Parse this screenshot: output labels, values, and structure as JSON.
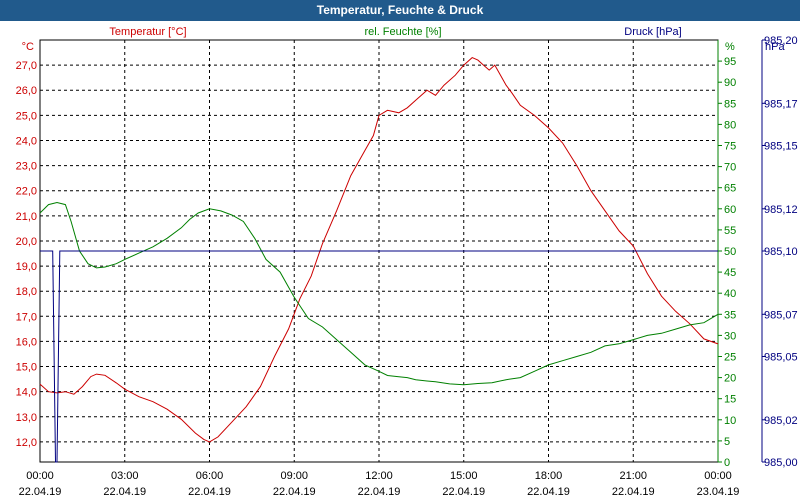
{
  "window": {
    "title": "Temperatur, Feuchte & Druck"
  },
  "chart_data": {
    "type": "line",
    "title": "Temperatur, Feuchte & Druck",
    "grid": true,
    "x_ticks": [
      {
        "time": "00:00",
        "date": "22.04.19"
      },
      {
        "time": "03:00",
        "date": "22.04.19"
      },
      {
        "time": "06:00",
        "date": "22.04.19"
      },
      {
        "time": "09:00",
        "date": "22.04.19"
      },
      {
        "time": "12:00",
        "date": "22.04.19"
      },
      {
        "time": "15:00",
        "date": "22.04.19"
      },
      {
        "time": "18:00",
        "date": "22.04.19"
      },
      {
        "time": "21:00",
        "date": "22.04.19"
      },
      {
        "time": "00:00",
        "date": "23.04.19"
      }
    ],
    "x_range_hours": [
      0,
      24
    ],
    "axes": {
      "temperature": {
        "label": "Temperatur [°C]",
        "unit": "°C",
        "range": [
          11.2,
          28.0
        ],
        "color": "#cc0000",
        "ticks": [
          "12,0",
          "13,0",
          "14,0",
          "15,0",
          "16,0",
          "17,0",
          "18,0",
          "19,0",
          "20,0",
          "21,0",
          "22,0",
          "23,0",
          "24,0",
          "25,0",
          "26,0",
          "27,0"
        ]
      },
      "humidity": {
        "label": "rel. Feuchte [%]",
        "unit": "%",
        "range": [
          0,
          100
        ],
        "color": "#008000",
        "ticks": [
          "0",
          "5",
          "10",
          "15",
          "20",
          "25",
          "30",
          "35",
          "40",
          "45",
          "50",
          "55",
          "60",
          "65",
          "70",
          "75",
          "80",
          "85",
          "90",
          "95"
        ]
      },
      "pressure": {
        "label": "Druck [hPa]",
        "unit": "hPa",
        "range": [
          985.0,
          985.2
        ],
        "color": "#000080",
        "ticks": [
          "985,00",
          "985,02",
          "985,05",
          "985,07",
          "985,10",
          "985,12",
          "985,15",
          "985,17",
          "985,20"
        ]
      }
    },
    "series": [
      {
        "name": "Temperatur [°C]",
        "axis": "temperature",
        "color": "#cc0000",
        "x": [
          0,
          0.3,
          0.6,
          0.9,
          1.2,
          1.5,
          1.8,
          2.0,
          2.3,
          2.7,
          3.0,
          3.5,
          4.0,
          4.5,
          5.0,
          5.5,
          5.8,
          6.0,
          6.3,
          6.8,
          7.3,
          7.8,
          8.3,
          8.8,
          9.2,
          9.6,
          10.0,
          10.5,
          11.0,
          11.5,
          11.8,
          12.0,
          12.3,
          12.7,
          13.0,
          13.3,
          13.7,
          14.0,
          14.3,
          14.7,
          15.0,
          15.3,
          15.5,
          15.7,
          15.9,
          16.1,
          16.3,
          16.5,
          16.7,
          17.0,
          17.5,
          18.0,
          18.5,
          19.0,
          19.5,
          20.0,
          20.5,
          21.0,
          21.5,
          22.0,
          22.5,
          23.0,
          23.5,
          24.0
        ],
        "y": [
          14.3,
          14.0,
          13.95,
          14.0,
          13.9,
          14.2,
          14.6,
          14.7,
          14.65,
          14.35,
          14.1,
          13.8,
          13.6,
          13.3,
          12.9,
          12.35,
          12.1,
          12.0,
          12.2,
          12.8,
          13.4,
          14.2,
          15.4,
          16.5,
          17.7,
          18.6,
          19.9,
          21.2,
          22.6,
          23.6,
          24.2,
          25.0,
          25.2,
          25.1,
          25.3,
          25.6,
          26.0,
          25.8,
          26.2,
          26.6,
          27.0,
          27.3,
          27.2,
          27.0,
          26.8,
          27.0,
          26.6,
          26.2,
          25.9,
          25.4,
          25.0,
          24.5,
          23.9,
          23.0,
          22.0,
          21.2,
          20.4,
          19.8,
          18.7,
          17.8,
          17.2,
          16.7,
          16.1,
          15.9
        ]
      },
      {
        "name": "rel. Feuchte [%]",
        "axis": "humidity",
        "color": "#008000",
        "x": [
          0,
          0.3,
          0.6,
          0.9,
          1.1,
          1.4,
          1.7,
          2.0,
          2.3,
          2.7,
          3.0,
          3.5,
          4.0,
          4.5,
          5.0,
          5.3,
          5.6,
          6.0,
          6.4,
          6.8,
          7.2,
          7.6,
          8.0,
          8.5,
          9.0,
          9.5,
          10.0,
          10.5,
          11.0,
          11.5,
          12.0,
          12.3,
          12.7,
          13.0,
          13.3,
          13.7,
          14.0,
          14.5,
          15.0,
          15.5,
          16.0,
          16.5,
          17.0,
          17.5,
          18.0,
          18.5,
          19.0,
          19.5,
          20.0,
          20.5,
          21.0,
          21.5,
          22.0,
          22.5,
          23.0,
          23.5,
          24.0
        ],
        "y": [
          59,
          61,
          61.5,
          61,
          57,
          50,
          47,
          46,
          46.2,
          47,
          48,
          49.5,
          51,
          53,
          55.5,
          57.5,
          59,
          60,
          59.5,
          58.5,
          57,
          53,
          48,
          45,
          39,
          34,
          32,
          29,
          26,
          23,
          21.5,
          20.5,
          20.2,
          20,
          19.5,
          19.2,
          19,
          18.5,
          18.3,
          18.6,
          18.8,
          19.5,
          20,
          21.5,
          23,
          24,
          25,
          26,
          27.5,
          28,
          29,
          30,
          30.5,
          31.5,
          32.5,
          33,
          35
        ]
      },
      {
        "name": "Druck [hPa]",
        "axis": "pressure",
        "color": "#000080",
        "x": [
          0,
          0.35,
          0.45,
          0.55,
          0.6,
          0.7,
          0.8,
          24.0
        ],
        "y": [
          985.1,
          985.1,
          985.1,
          985.0,
          985.0,
          985.1,
          985.1,
          985.1
        ]
      }
    ]
  }
}
